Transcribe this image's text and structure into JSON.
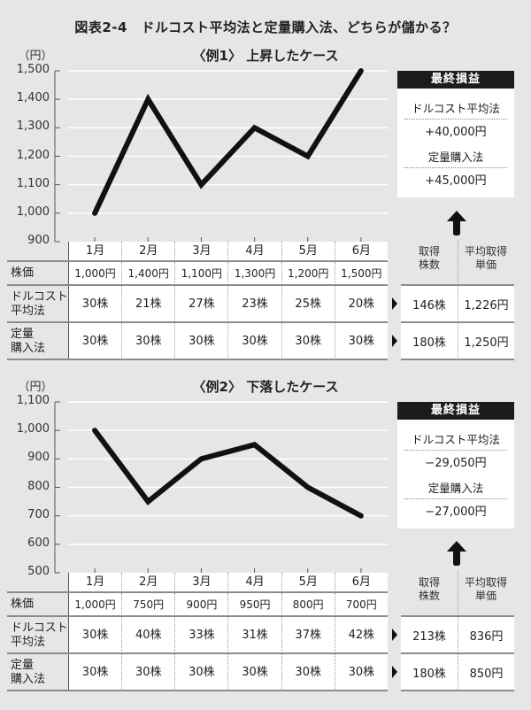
{
  "figure_title": "図表2-4　ドルコスト平均法と定量購入法、どちらが儲かる？",
  "colors": {
    "background": "#e6e6e6",
    "line": "#111111",
    "gridline": "#ffffff",
    "header_bg": "#1c1c1c",
    "table_bg": "#ffffff"
  },
  "examples": [
    {
      "title": "〈例1〉 上昇したケース",
      "y_unit": "（円）",
      "y_ticks": [
        "1,500",
        "1,400",
        "1,300",
        "1,200",
        "1,100",
        "1,000",
        "900"
      ],
      "months": [
        "1月",
        "2月",
        "3月",
        "4月",
        "5月",
        "6月"
      ],
      "rows": [
        {
          "label": "株価",
          "values": [
            "1,000円",
            "1,400円",
            "1,100円",
            "1,300円",
            "1,200円",
            "1,500円"
          ]
        },
        {
          "label": "ドルコスト\n平均法",
          "values": [
            "30株",
            "21株",
            "27株",
            "23株",
            "25株",
            "20株"
          ]
        },
        {
          "label": "定量\n購入法",
          "values": [
            "30株",
            "30株",
            "30株",
            "30株",
            "30株",
            "30株"
          ]
        }
      ],
      "summary_headers": [
        "取得\n株数",
        "平均取得\n単価"
      ],
      "summary_rows": [
        {
          "shares": "146株",
          "avg_price": "1,226円"
        },
        {
          "shares": "180株",
          "avg_price": "1,250円"
        }
      ],
      "final_pl": {
        "header": "最終損益",
        "items": [
          {
            "label": "ドルコスト平均法",
            "value": "+40,000円"
          },
          {
            "label": "定量購入法",
            "value": "+45,000円"
          }
        ]
      }
    },
    {
      "title": "〈例2〉 下落したケース",
      "y_unit": "（円）",
      "y_ticks": [
        "1,100",
        "1,000",
        "900",
        "800",
        "700",
        "600",
        "500"
      ],
      "months": [
        "1月",
        "2月",
        "3月",
        "4月",
        "5月",
        "6月"
      ],
      "rows": [
        {
          "label": "株価",
          "values": [
            "1,000円",
            "750円",
            "900円",
            "950円",
            "800円",
            "700円"
          ]
        },
        {
          "label": "ドルコスト\n平均法",
          "values": [
            "30株",
            "40株",
            "33株",
            "31株",
            "37株",
            "42株"
          ]
        },
        {
          "label": "定量\n購入法",
          "values": [
            "30株",
            "30株",
            "30株",
            "30株",
            "30株",
            "30株"
          ]
        }
      ],
      "summary_headers": [
        "取得\n株数",
        "平均取得\n単価"
      ],
      "summary_rows": [
        {
          "shares": "213株",
          "avg_price": "836円"
        },
        {
          "shares": "180株",
          "avg_price": "850円"
        }
      ],
      "final_pl": {
        "header": "最終損益",
        "items": [
          {
            "label": "ドルコスト平均法",
            "value": "−29,050円"
          },
          {
            "label": "定量購入法",
            "value": "−27,000円"
          }
        ]
      }
    }
  ],
  "chart_data": [
    {
      "type": "line",
      "title": "〈例1〉 上昇したケース",
      "xlabel": "",
      "ylabel": "（円）",
      "categories": [
        "1月",
        "2月",
        "3月",
        "4月",
        "5月",
        "6月"
      ],
      "series": [
        {
          "name": "株価",
          "values": [
            1000,
            1400,
            1100,
            1300,
            1200,
            1500
          ]
        }
      ],
      "ylim": [
        900,
        1500
      ],
      "yticks": [
        900,
        1000,
        1100,
        1200,
        1300,
        1400,
        1500
      ],
      "grid": true,
      "legend": "none"
    },
    {
      "type": "line",
      "title": "〈例2〉 下落したケース",
      "xlabel": "",
      "ylabel": "（円）",
      "categories": [
        "1月",
        "2月",
        "3月",
        "4月",
        "5月",
        "6月"
      ],
      "series": [
        {
          "name": "株価",
          "values": [
            1000,
            750,
            900,
            950,
            800,
            700
          ]
        }
      ],
      "ylim": [
        500,
        1100
      ],
      "yticks": [
        500,
        600,
        700,
        800,
        900,
        1000,
        1100
      ],
      "grid": true,
      "legend": "none"
    }
  ]
}
